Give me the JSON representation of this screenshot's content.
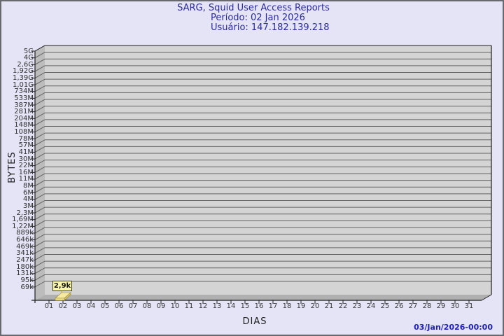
{
  "title": {
    "line1": "SARG, Squid User Access Reports",
    "line2": "Período: 02 Jan 2026",
    "line3": "Usuário: 147.182.139.218"
  },
  "axes": {
    "x_title": "DIAS",
    "y_title": "BYTES"
  },
  "footer": {
    "generated": "03/Jan/2026-00:00"
  },
  "chart_data": {
    "type": "bar",
    "title": "SARG, Squid User Access Reports",
    "subtitle_period": "Período: 02 Jan 2026",
    "subtitle_user": "Usuário: 147.182.139.218",
    "xlabel": "DIAS",
    "ylabel": "BYTES",
    "x_categories": [
      "01",
      "02",
      "03",
      "04",
      "05",
      "06",
      "07",
      "08",
      "09",
      "10",
      "11",
      "12",
      "13",
      "14",
      "15",
      "16",
      "17",
      "18",
      "19",
      "20",
      "21",
      "22",
      "23",
      "24",
      "25",
      "26",
      "27",
      "28",
      "29",
      "30",
      "31"
    ],
    "y_axis": {
      "scale": "log",
      "tick_labels": [
        "5G",
        "4G",
        "2,6G",
        "1,92G",
        "1,39G",
        "1,01G",
        "734M",
        "533M",
        "387M",
        "281M",
        "204M",
        "148M",
        "108M",
        "78M",
        "57M",
        "41M",
        "30M",
        "22M",
        "16M",
        "11M",
        "8M",
        "6M",
        "4M",
        "3M",
        "2,3M",
        "1,69M",
        "1,22M",
        "889k",
        "646k",
        "469k",
        "341k",
        "247k",
        "180k",
        "131k",
        "95k",
        "69k"
      ]
    },
    "grid": true,
    "legend": "none",
    "bars": [
      {
        "day": "02",
        "value_label": "2,9k",
        "approx_bytes": 2900
      }
    ]
  },
  "colors": {
    "background": "#e4e4f6",
    "border": "#68686f",
    "plot_bg": "#d4d4d4",
    "wall": "#bcbcbc",
    "floor": "#b0b0b0",
    "grid": "#636363",
    "axis": "#1f1f1f",
    "title_text": "#2a2a9e",
    "timestamp_text": "#2020c0",
    "bar_top": "#f6eaa2",
    "bar_front": "#f0e28c",
    "bar_side": "#d8c468",
    "bar_edge": "#97873b",
    "value_label_bg": "#fcf7ae",
    "value_label_border": "#3f3f10",
    "tick_text": "#303030"
  }
}
